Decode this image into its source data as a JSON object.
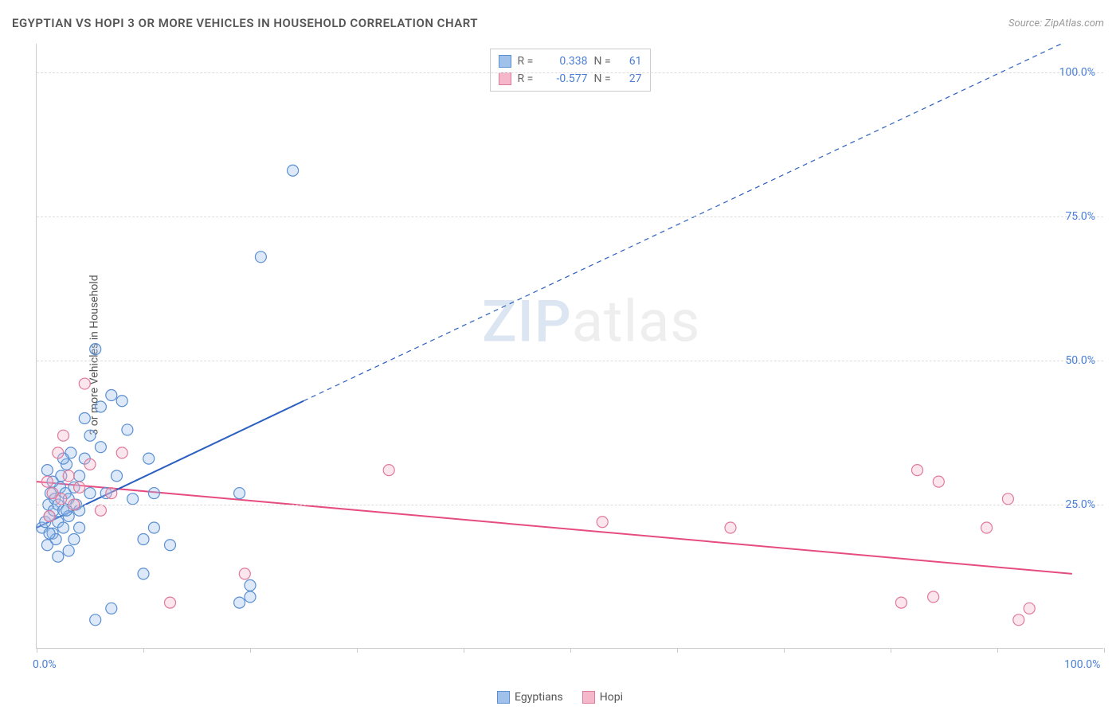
{
  "title": "EGYPTIAN VS HOPI 3 OR MORE VEHICLES IN HOUSEHOLD CORRELATION CHART",
  "source": "Source: ZipAtlas.com",
  "watermark": {
    "part1": "ZIP",
    "part2": "atlas"
  },
  "y_axis_label": "3 or more Vehicles in Household",
  "chart": {
    "type": "scatter",
    "background": "#ffffff",
    "grid_color": "#dddddd",
    "axis_color": "#cccccc",
    "xlim": [
      0,
      100
    ],
    "ylim": [
      0,
      105
    ],
    "x_ticks": [
      0,
      10,
      20,
      30,
      40,
      50,
      60,
      70,
      80,
      90,
      100
    ],
    "x_tick_labels": {
      "0": "0.0%",
      "100": "100.0%"
    },
    "y_ticks": [
      25,
      50,
      75,
      100
    ],
    "y_tick_labels": {
      "25": "25.0%",
      "50": "50.0%",
      "75": "75.0%",
      "100": "100.0%"
    },
    "marker_radius": 7,
    "marker_stroke_width": 1.2,
    "marker_fill_opacity": 0.35
  },
  "series": {
    "egyptians": {
      "label": "Egyptians",
      "color_fill": "#9fc1ea",
      "color_stroke": "#5a8fd1",
      "R": "0.338",
      "N": "61",
      "points": [
        [
          0.5,
          21
        ],
        [
          0.8,
          22
        ],
        [
          1.0,
          18
        ],
        [
          1.1,
          25
        ],
        [
          1.2,
          23
        ],
        [
          1.3,
          27
        ],
        [
          1.5,
          20
        ],
        [
          1.6,
          24
        ],
        [
          1.7,
          26
        ],
        [
          1.8,
          19
        ],
        [
          2.0,
          25
        ],
        [
          2.0,
          22
        ],
        [
          2.2,
          28
        ],
        [
          2.3,
          30
        ],
        [
          2.5,
          21
        ],
        [
          2.5,
          24
        ],
        [
          2.7,
          27
        ],
        [
          2.8,
          32
        ],
        [
          3.0,
          26
        ],
        [
          3.0,
          23
        ],
        [
          3.2,
          34
        ],
        [
          3.5,
          28
        ],
        [
          3.5,
          19
        ],
        [
          3.7,
          25
        ],
        [
          4.0,
          30
        ],
        [
          4.0,
          24
        ],
        [
          4.5,
          40
        ],
        [
          4.5,
          33
        ],
        [
          5.0,
          27
        ],
        [
          5.0,
          37
        ],
        [
          5.5,
          52
        ],
        [
          6.0,
          42
        ],
        [
          6.0,
          35
        ],
        [
          6.5,
          27
        ],
        [
          7.0,
          44
        ],
        [
          7.5,
          30
        ],
        [
          8.0,
          43
        ],
        [
          8.5,
          38
        ],
        [
          9.0,
          26
        ],
        [
          10.0,
          19
        ],
        [
          10.5,
          33
        ],
        [
          11.0,
          27
        ],
        [
          12.5,
          18
        ],
        [
          7.0,
          7
        ],
        [
          5.5,
          5
        ],
        [
          2.0,
          16
        ],
        [
          3.0,
          17
        ],
        [
          1.5,
          29
        ],
        [
          10.0,
          13
        ],
        [
          11.0,
          21
        ],
        [
          19.0,
          8
        ],
        [
          20.0,
          9
        ],
        [
          20.0,
          11
        ],
        [
          19.0,
          27
        ],
        [
          21.0,
          68
        ],
        [
          24.0,
          83
        ],
        [
          1.0,
          31
        ],
        [
          2.5,
          33
        ],
        [
          4.0,
          21
        ],
        [
          1.2,
          20
        ],
        [
          2.8,
          24
        ]
      ],
      "regression": {
        "solid": {
          "x1": 0,
          "y1": 21,
          "x2": 25,
          "y2": 43
        },
        "dashed": {
          "x1": 25,
          "y1": 43,
          "x2": 96,
          "y2": 105
        },
        "color": "#2b5fc0",
        "width": 2
      }
    },
    "hopi": {
      "label": "Hopi",
      "color_fill": "#f5b8ca",
      "color_stroke": "#e07a9a",
      "R": "-0.577",
      "N": "27",
      "points": [
        [
          1.0,
          29
        ],
        [
          1.5,
          27
        ],
        [
          2.0,
          34
        ],
        [
          2.5,
          37
        ],
        [
          3.0,
          30
        ],
        [
          3.5,
          25
        ],
        [
          4.0,
          28
        ],
        [
          4.5,
          46
        ],
        [
          5.0,
          32
        ],
        [
          6.0,
          24
        ],
        [
          7.0,
          27
        ],
        [
          8.0,
          34
        ],
        [
          1.2,
          23
        ],
        [
          2.3,
          26
        ],
        [
          12.5,
          8
        ],
        [
          19.5,
          13
        ],
        [
          33.0,
          31
        ],
        [
          53.0,
          22
        ],
        [
          65.0,
          21
        ],
        [
          84.5,
          29
        ],
        [
          82.5,
          31
        ],
        [
          91.0,
          26
        ],
        [
          89.0,
          21
        ],
        [
          81.0,
          8
        ],
        [
          84.0,
          9
        ],
        [
          92.0,
          5
        ],
        [
          93.0,
          7
        ]
      ],
      "regression": {
        "solid": {
          "x1": 0,
          "y1": 29,
          "x2": 97,
          "y2": 13
        },
        "color": "#e64c82",
        "width": 2
      }
    }
  },
  "stats_box": {
    "R_label": "R =",
    "N_label": "N ="
  }
}
